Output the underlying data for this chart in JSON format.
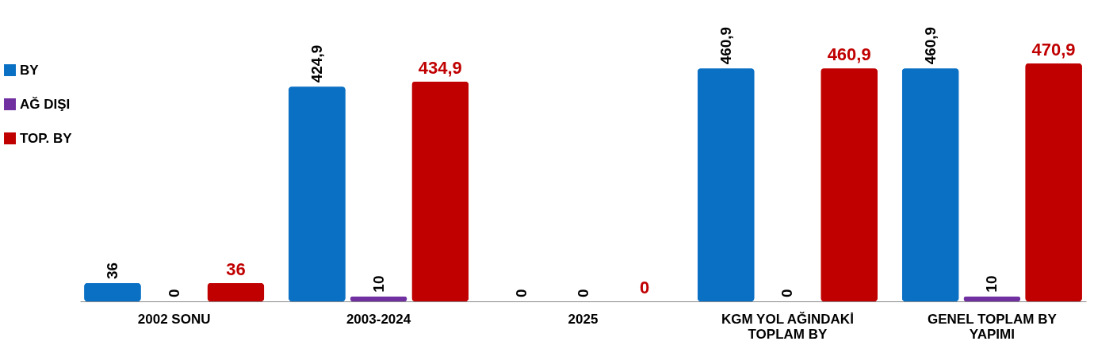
{
  "chart_data": {
    "type": "bar",
    "categories": [
      "2002 SONU",
      "2003-2024",
      "2025",
      "KGM YOL AĞINDAKİ TOPLAM BY",
      "GENEL TOPLAM BY YAPIMI"
    ],
    "series": [
      {
        "name": "BY",
        "color": "#0a70c4",
        "values": [
          36,
          424.9,
          0,
          460.9,
          460.9
        ],
        "value_labels": [
          "36",
          "424,9",
          "0",
          "460,9",
          "460,9"
        ]
      },
      {
        "name": "AĞ DIŞI",
        "color": "#7030a0",
        "values": [
          0,
          10,
          0,
          0,
          10
        ],
        "value_labels": [
          "0",
          "10",
          "0",
          "0",
          "10"
        ]
      },
      {
        "name": "TOP. BY",
        "color": "#c00000",
        "values": [
          36,
          434.9,
          0,
          460.9,
          470.9
        ],
        "value_labels": [
          "36",
          "434,9",
          "0",
          "460,9",
          "470,9"
        ]
      }
    ],
    "legend": "top left",
    "grid": false
  }
}
